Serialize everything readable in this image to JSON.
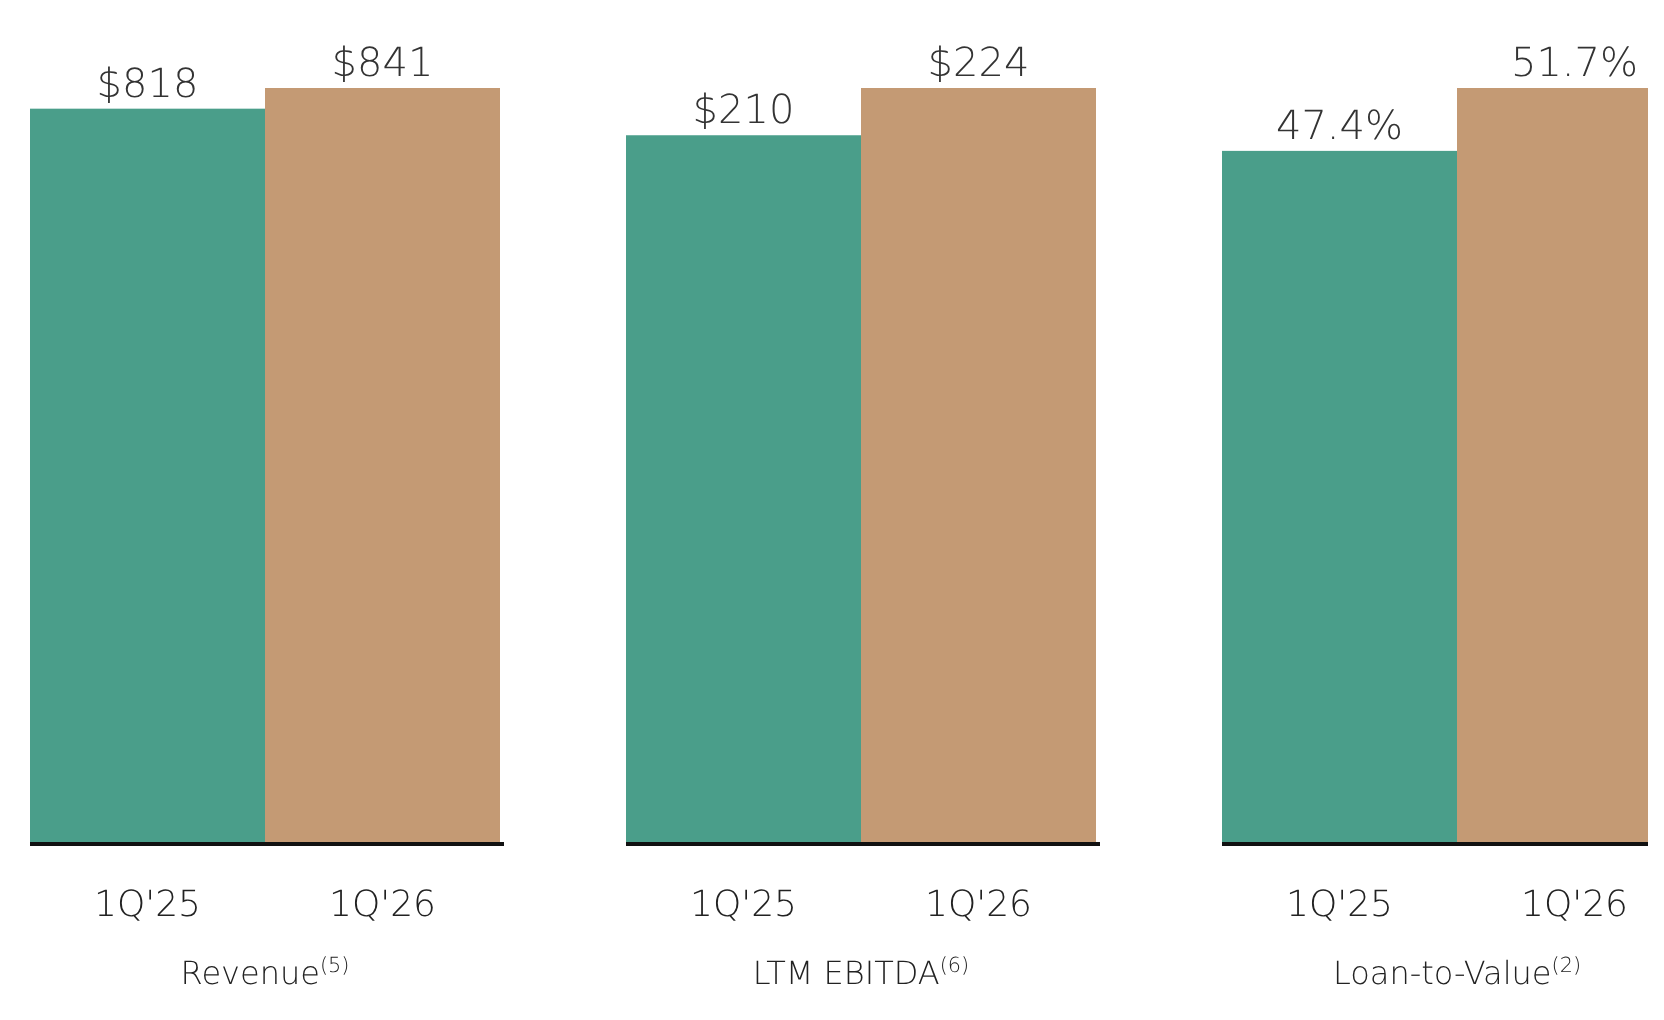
{
  "chart_data": [
    {
      "type": "bar",
      "xlabel": "Revenue$^{(5)}$",
      "categories": [
        "1Q'25",
        "1Q'26"
      ],
      "values": [
        818,
        841
      ],
      "colors": [
        "#4a9e8a",
        "#c49a74"
      ],
      "value_labels": [
        "$818",
        "$841"
      ],
      "tick_labels": "x"
    },
    {
      "type": "bar",
      "xlabel": "LTM EBITDA$^{(6)}$",
      "categories": [
        "1Q'25",
        "1Q'26"
      ],
      "values": [
        210,
        224
      ],
      "colors": [
        "#4a9e8a",
        "#c49a74"
      ],
      "value_labels": [
        "$210",
        "$224"
      ],
      "tick_labels": "x"
    },
    {
      "type": "bar",
      "xlabel": "Loan-to-Value$^{(2)}$",
      "categories": [
        "1Q'25",
        "1Q'26"
      ],
      "values": [
        47.4,
        51.7
      ],
      "colors": [
        "#4a9e8a",
        "#c49a74"
      ],
      "value_labels": [
        "47.4%",
        "51.7%"
      ],
      "tick_labels": "x"
    }
  ]
}
